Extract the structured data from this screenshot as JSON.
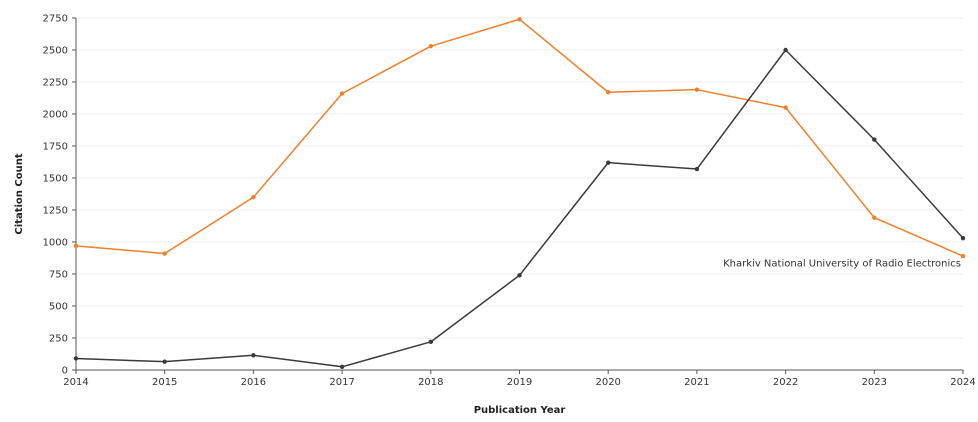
{
  "chart_data": {
    "type": "line",
    "xlabel": "Publication Year",
    "ylabel": "Citation Count",
    "x": [
      2014,
      2015,
      2016,
      2017,
      2018,
      2019,
      2020,
      2021,
      2022,
      2023,
      2024
    ],
    "ylim": [
      0,
      2750
    ],
    "yticks": [
      0,
      250,
      500,
      750,
      1000,
      1250,
      1500,
      1750,
      2000,
      2250,
      2500,
      2750
    ],
    "grid": true,
    "series": [
      {
        "color": "#f07f2d",
        "values": [
          970,
          910,
          1350,
          2160,
          2530,
          2740,
          2170,
          2190,
          2050,
          1190,
          890
        ]
      },
      {
        "color": "#3a3a3a",
        "values": [
          90,
          65,
          115,
          25,
          220,
          740,
          1620,
          1570,
          2500,
          1800,
          1030
        ]
      }
    ],
    "annotations": [
      {
        "text": "Kharkiv National University of Radio Electronics",
        "x": 2024,
        "y": 810,
        "anchor": "end"
      }
    ]
  }
}
